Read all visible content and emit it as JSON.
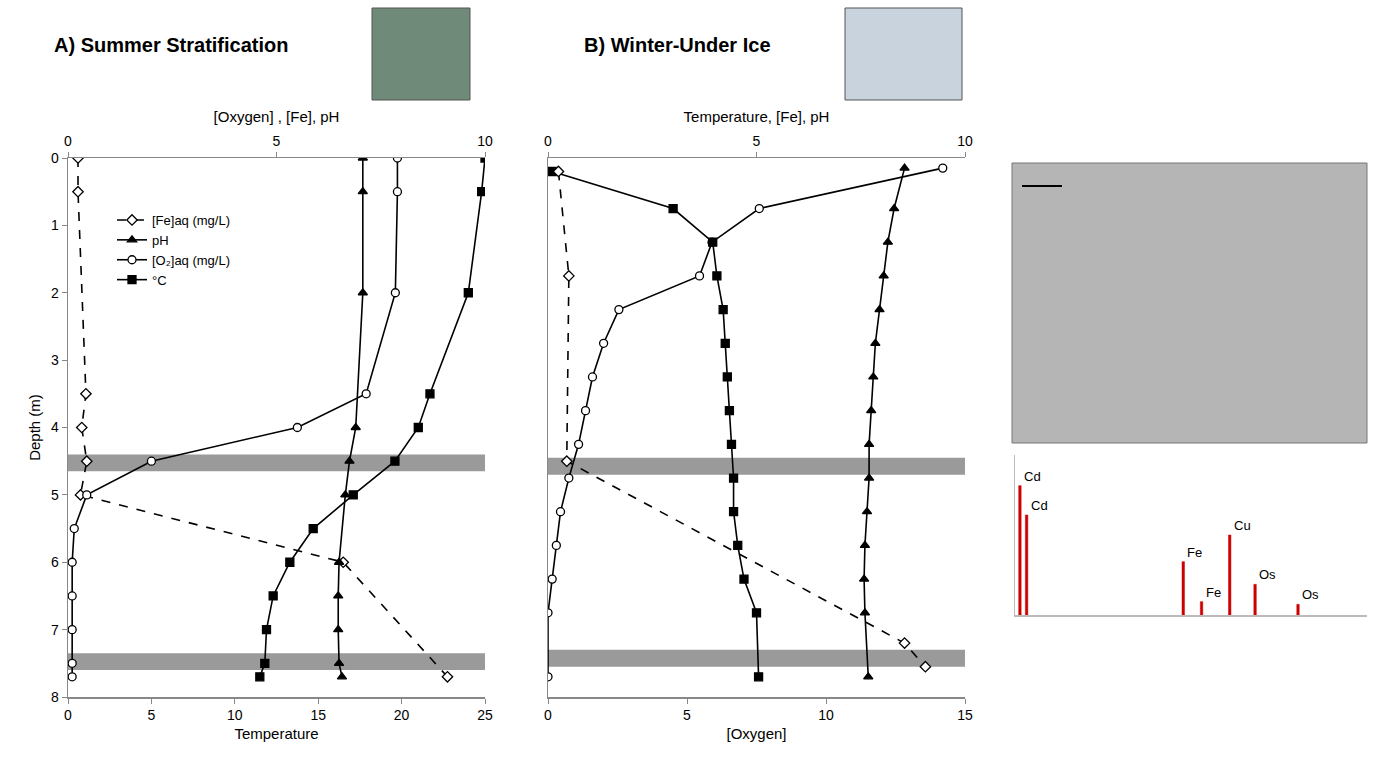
{
  "chart_data": [
    {
      "type": "line",
      "title": "A) Summer Stratification",
      "xlabel": "Temperature",
      "x2label": "[Oxygen] , [Fe], pH",
      "ylabel": "Depth (m)",
      "xlim": [
        0,
        25
      ],
      "xticks": [
        0,
        5,
        10,
        15,
        20,
        25
      ],
      "x2lim": [
        0,
        10
      ],
      "x2ticks": [
        0,
        5,
        10
      ],
      "ylim": [
        8,
        0
      ],
      "yticks": [
        0,
        1,
        2,
        3,
        4,
        5,
        6,
        7,
        8
      ],
      "legend": "upper left",
      "shaded_depths": [
        [
          4.4,
          4.65
        ],
        [
          7.35,
          7.6
        ]
      ],
      "series": [
        {
          "name": "[Fe]aq (mg/L)",
          "axis": "x2",
          "color": "#000000",
          "marker": "diamond-open",
          "line_style": "dash",
          "x": [
            0.24,
            0.24,
            0.43,
            0.33,
            0.45,
            0.3,
            6.6,
            9.1
          ],
          "y": [
            0,
            0.5,
            3.5,
            4,
            4.5,
            5,
            6,
            7.7
          ]
        },
        {
          "name": "pH",
          "axis": "x2",
          "color": "#000000",
          "marker": "triangle-up",
          "line_style": "solid",
          "x": [
            7.07,
            7.07,
            7.07,
            6.9,
            6.75,
            6.65,
            6.5,
            6.48,
            6.48,
            6.5,
            6.57
          ],
          "y": [
            0,
            0.5,
            2,
            4,
            4.5,
            5,
            6,
            6.5,
            7,
            7.5,
            7.7
          ]
        },
        {
          "name": "[O₂]aq (mg/L)",
          "axis": "x2",
          "color": "#000000",
          "marker": "circle-open",
          "line_style": "solid",
          "x": [
            7.9,
            7.9,
            7.85,
            7.15,
            5.5,
            2.0,
            0.45,
            0.15,
            0.1,
            0.1,
            0.1,
            0.1,
            0.1
          ],
          "y": [
            0,
            0.5,
            2,
            3.5,
            4,
            4.5,
            5,
            5.5,
            6,
            6.5,
            7,
            7.5,
            7.7
          ]
        },
        {
          "name": "°C",
          "axis": "x",
          "color": "#000000",
          "marker": "square",
          "line_style": "solid",
          "x": [
            25,
            24.8,
            24,
            21.7,
            21,
            19.6,
            17.1,
            14.7,
            13.3,
            12.3,
            11.9,
            11.8,
            11.5
          ],
          "y": [
            0,
            0.5,
            2,
            3.5,
            4,
            4.5,
            5,
            5.5,
            6,
            6.5,
            7,
            7.5,
            7.7
          ]
        }
      ]
    },
    {
      "type": "line",
      "title": "B) Winter-Under Ice",
      "xlabel": "[Oxygen]",
      "x2label": "Temperature, [Fe], pH",
      "xlim": [
        0,
        15
      ],
      "xticks": [
        0,
        5,
        10,
        15
      ],
      "x2lim": [
        0,
        10
      ],
      "x2ticks": [
        0,
        5,
        10
      ],
      "ylim": [
        8,
        0
      ],
      "tick_labels": "x",
      "shaded_depths": [
        [
          4.45,
          4.7
        ],
        [
          7.3,
          7.55
        ]
      ],
      "series": [
        {
          "axis": "x2",
          "color": "#000000",
          "marker": "square",
          "line_style": "solid",
          "x": [
            0.1,
            3.0,
            3.95,
            4.05,
            4.2,
            4.25,
            4.3,
            4.35,
            4.4,
            4.45,
            4.45,
            4.55,
            4.7,
            5.0,
            5.05
          ],
          "y": [
            0.2,
            0.75,
            1.25,
            1.75,
            2.25,
            2.75,
            3.25,
            3.75,
            4.25,
            4.75,
            5.25,
            5.75,
            6.25,
            6.75,
            7.7
          ]
        },
        {
          "axis": "x2",
          "color": "#000000",
          "marker": "diamond-open",
          "line_style": "dash",
          "x": [
            0.25,
            0.5,
            0.45,
            8.55,
            9.05
          ],
          "y": [
            0.2,
            1.75,
            4.5,
            7.2,
            7.55
          ]
        },
        {
          "axis": "x2",
          "color": "#000000",
          "marker": "triangle-up",
          "line_style": "solid",
          "x": [
            8.55,
            8.3,
            8.15,
            8.05,
            7.95,
            7.85,
            7.8,
            7.75,
            7.7,
            7.7,
            7.65,
            7.6,
            7.58,
            7.6,
            7.68
          ],
          "y": [
            0.15,
            0.75,
            1.25,
            1.75,
            2.25,
            2.75,
            3.25,
            3.75,
            4.25,
            4.75,
            5.25,
            5.75,
            6.25,
            6.75,
            7.7
          ]
        },
        {
          "axis": "x",
          "color": "#000000",
          "marker": "circle-open",
          "line_style": "solid",
          "x": [
            14.2,
            7.6,
            5.9,
            5.45,
            2.55,
            2.0,
            1.6,
            1.35,
            1.1,
            0.75,
            0.45,
            0.3,
            0.15,
            0,
            0
          ],
          "y": [
            0.15,
            0.75,
            1.25,
            1.75,
            2.25,
            2.75,
            3.25,
            3.75,
            4.25,
            4.75,
            5.25,
            5.75,
            6.25,
            6.75,
            7.7
          ]
        }
      ]
    },
    {
      "type": "bar",
      "color": "#cc0000",
      "xlim": [
        0,
        100
      ],
      "ylim": [
        0,
        120
      ],
      "tick_labels": false,
      "x": [
        1.4,
        3.3,
        47.8,
        53,
        61,
        68.2,
        80.4
      ],
      "values": [
        97,
        75,
        40,
        10,
        60,
        23,
        8
      ],
      "point_labels": [
        "Cd",
        "Cd",
        "Fe",
        "Fe",
        "Cu",
        "Os",
        "Os"
      ]
    }
  ]
}
